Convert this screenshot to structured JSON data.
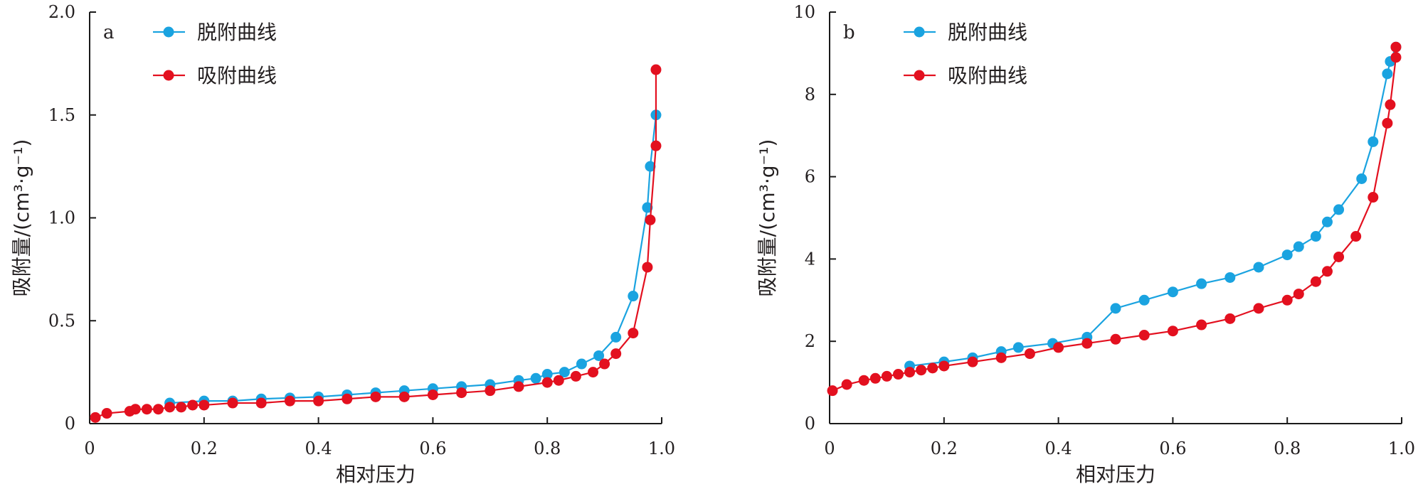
{
  "colors": {
    "desorption": "#1aa3e0",
    "adsorption": "#e3101f",
    "axis": "#1a1a1a",
    "text": "#231f20"
  },
  "chart_data": [
    {
      "type": "line",
      "panel_label": "a",
      "xlabel": "相对压力",
      "ylabel": "吸附量/(cm³·g⁻¹)",
      "xlim": [
        0,
        1.0
      ],
      "ylim": [
        0,
        2.0
      ],
      "xticks": [
        0,
        0.2,
        0.4,
        0.6,
        0.8,
        1.0
      ],
      "xtick_labels": [
        "0",
        "0.2",
        "0.4",
        "0.6",
        "0.8",
        "1.0"
      ],
      "yticks": [
        0,
        0.5,
        1.0,
        1.5,
        2.0
      ],
      "ytick_labels": [
        "0",
        "0.5",
        "1.0",
        "1.5",
        "2.0"
      ],
      "grid": false,
      "legend_position": "top-left",
      "series": [
        {
          "name": "脱附曲线",
          "color": "#1aa3e0",
          "x": [
            0.14,
            0.2,
            0.25,
            0.3,
            0.35,
            0.4,
            0.45,
            0.5,
            0.55,
            0.6,
            0.65,
            0.7,
            0.75,
            0.78,
            0.8,
            0.83,
            0.86,
            0.89,
            0.92,
            0.95,
            0.975,
            0.98,
            0.99
          ],
          "y": [
            0.1,
            0.11,
            0.11,
            0.12,
            0.125,
            0.13,
            0.14,
            0.15,
            0.16,
            0.17,
            0.18,
            0.19,
            0.21,
            0.22,
            0.24,
            0.25,
            0.29,
            0.33,
            0.42,
            0.62,
            1.05,
            1.25,
            1.5
          ]
        },
        {
          "name": "吸附曲线",
          "color": "#e3101f",
          "x": [
            0.01,
            0.03,
            0.07,
            0.08,
            0.1,
            0.12,
            0.14,
            0.16,
            0.18,
            0.2,
            0.25,
            0.3,
            0.35,
            0.4,
            0.45,
            0.5,
            0.55,
            0.6,
            0.65,
            0.7,
            0.75,
            0.8,
            0.82,
            0.85,
            0.88,
            0.9,
            0.92,
            0.95,
            0.975,
            0.98,
            0.99,
            0.99
          ],
          "y": [
            0.03,
            0.05,
            0.06,
            0.07,
            0.07,
            0.07,
            0.08,
            0.08,
            0.09,
            0.09,
            0.1,
            0.1,
            0.11,
            0.11,
            0.12,
            0.13,
            0.13,
            0.14,
            0.15,
            0.16,
            0.18,
            0.2,
            0.21,
            0.23,
            0.25,
            0.29,
            0.34,
            0.44,
            0.76,
            0.99,
            1.35,
            1.72
          ]
        }
      ]
    },
    {
      "type": "line",
      "panel_label": "b",
      "xlabel": "相对压力",
      "ylabel": "吸附量/(cm³·g⁻¹)",
      "xlim": [
        0,
        1.0
      ],
      "ylim": [
        0,
        10
      ],
      "xticks": [
        0,
        0.2,
        0.4,
        0.6,
        0.8,
        1.0
      ],
      "xtick_labels": [
        "0",
        "0.2",
        "0.4",
        "0.6",
        "0.8",
        "1.0"
      ],
      "yticks": [
        0,
        2,
        4,
        6,
        8,
        10
      ],
      "ytick_labels": [
        "0",
        "2",
        "4",
        "6",
        "8",
        "10"
      ],
      "grid": false,
      "legend_position": "top-left",
      "series": [
        {
          "name": "脱附曲线",
          "color": "#1aa3e0",
          "x": [
            0.14,
            0.2,
            0.25,
            0.3,
            0.33,
            0.39,
            0.45,
            0.5,
            0.55,
            0.6,
            0.65,
            0.7,
            0.75,
            0.8,
            0.82,
            0.85,
            0.87,
            0.89,
            0.93,
            0.95,
            0.975,
            0.98,
            0.99
          ],
          "y": [
            1.4,
            1.5,
            1.6,
            1.75,
            1.85,
            1.95,
            2.1,
            2.8,
            3.0,
            3.2,
            3.4,
            3.55,
            3.8,
            4.1,
            4.3,
            4.55,
            4.9,
            5.2,
            5.95,
            6.85,
            8.5,
            8.8,
            9.15
          ]
        },
        {
          "name": "吸附曲线",
          "color": "#e3101f",
          "x": [
            0.005,
            0.03,
            0.06,
            0.08,
            0.1,
            0.12,
            0.14,
            0.16,
            0.18,
            0.2,
            0.25,
            0.3,
            0.35,
            0.4,
            0.45,
            0.5,
            0.55,
            0.6,
            0.65,
            0.7,
            0.75,
            0.8,
            0.82,
            0.85,
            0.87,
            0.89,
            0.92,
            0.95,
            0.975,
            0.98,
            0.99,
            0.99
          ],
          "y": [
            0.8,
            0.95,
            1.05,
            1.1,
            1.15,
            1.2,
            1.25,
            1.3,
            1.35,
            1.4,
            1.5,
            1.6,
            1.7,
            1.85,
            1.95,
            2.05,
            2.15,
            2.25,
            2.4,
            2.55,
            2.8,
            3.0,
            3.15,
            3.45,
            3.7,
            4.05,
            4.55,
            5.5,
            7.3,
            7.75,
            8.9,
            9.15
          ]
        }
      ]
    }
  ]
}
